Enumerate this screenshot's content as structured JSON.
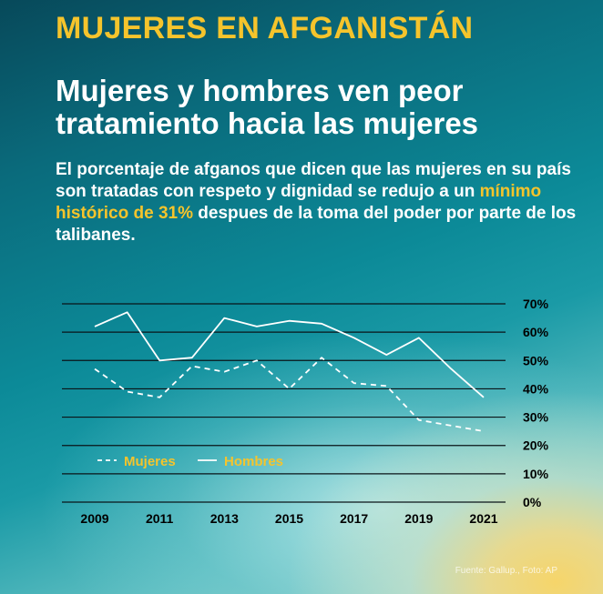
{
  "kicker": "MUJERES EN AFGANISTÁN",
  "headline_line1": "Mujeres y hombres ven peor",
  "headline_line2": "tratamiento hacia las mujeres",
  "subtitle": {
    "part1": "El porcentaje de afganos que dicen que las mujeres en su país son tratadas con respeto y dignidad se redujo a un ",
    "highlight": "mínimo histórico de 31%",
    "part2": " despues de la toma del poder por parte de los talibanes."
  },
  "source": "Fuente: Gallup., Foto: AP",
  "colors": {
    "accent": "#f5c42c",
    "line": "#ffffff",
    "grid": "#0a1418"
  },
  "chart_data": {
    "type": "line",
    "title": "",
    "xlabel": "",
    "ylabel": "",
    "x": [
      2009,
      2010,
      2011,
      2012,
      2013,
      2014,
      2015,
      2016,
      2017,
      2018,
      2019,
      2020,
      2021
    ],
    "xticks": [
      "2009",
      "2011",
      "2013",
      "2015",
      "2017",
      "2019",
      "2021"
    ],
    "yticks": [
      "70%",
      "60%",
      "50%",
      "40%",
      "30%",
      "20%",
      "10%",
      "0%"
    ],
    "ylim": [
      0,
      70
    ],
    "legend": "bottom-left",
    "series": [
      {
        "name": "Mujeres",
        "style": "dashed",
        "x": [
          2009,
          2010,
          2011,
          2012,
          2013,
          2014,
          2015,
          2016,
          2017,
          2018,
          2019,
          2020,
          2021
        ],
        "values": [
          47,
          39,
          37,
          48,
          46,
          50,
          40,
          51,
          42,
          41,
          29,
          27,
          25
        ]
      },
      {
        "name": "Hombres",
        "style": "solid",
        "x": [
          2009,
          2010,
          2011,
          2012,
          2013,
          2014,
          2015,
          2016,
          2017,
          2018,
          2019,
          2020,
          2021
        ],
        "values": [
          62,
          67,
          50,
          51,
          65,
          62,
          64,
          63,
          58,
          52,
          58,
          47,
          37
        ]
      }
    ]
  }
}
